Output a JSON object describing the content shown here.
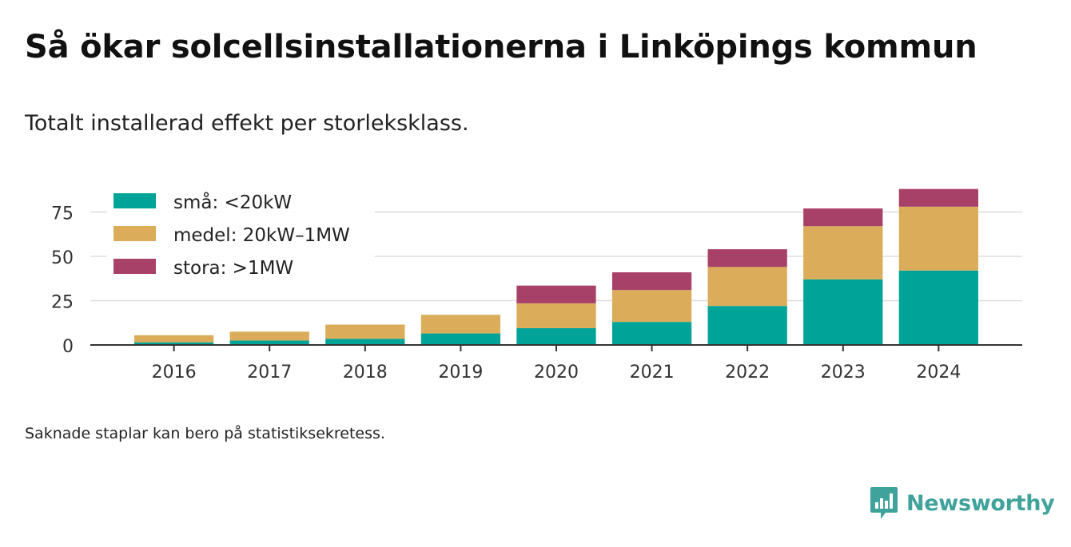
{
  "header": {
    "title": "Så ökar solcellsinstallationerna i Linköpings kommun",
    "subtitle": "Totalt installerad effekt per storleksklass."
  },
  "footer": {
    "note": "Saknade staplar kan bero på statistiksekretess.",
    "brand": "Newsworthy"
  },
  "colors": {
    "small": "#00a398",
    "medium": "#dbac5a",
    "large": "#a84168",
    "grid": "#dddddd",
    "axis": "#333333",
    "brand": "#3fa39b"
  },
  "chart_data": {
    "type": "bar",
    "stacked": true,
    "categories": [
      "2016",
      "2017",
      "2018",
      "2019",
      "2020",
      "2021",
      "2022",
      "2023",
      "2024"
    ],
    "series": [
      {
        "name": "små: <20kW",
        "values": [
          1.5,
          2.5,
          3.5,
          6.5,
          9.5,
          13,
          22,
          37,
          42
        ],
        "color": "#00a398"
      },
      {
        "name": "medel: 20kW–1MW",
        "values": [
          4,
          5,
          8,
          10.5,
          14,
          18,
          22,
          30,
          36
        ],
        "color": "#dbac5a"
      },
      {
        "name": "stora: >1MW",
        "values": [
          0,
          0,
          0,
          0,
          10,
          10,
          10,
          10,
          10
        ],
        "color": "#a84168"
      }
    ],
    "yticks": [
      0,
      25,
      50,
      75
    ],
    "ylim": [
      0,
      90
    ],
    "grid": true,
    "legend": "top-left"
  }
}
